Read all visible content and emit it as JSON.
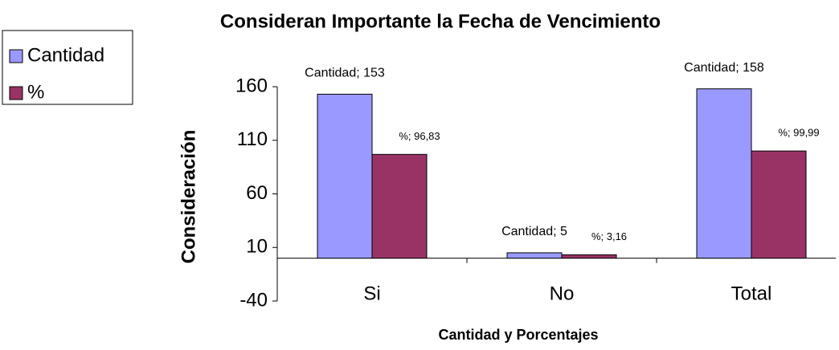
{
  "chart_data": {
    "type": "bar",
    "title": "Consideran Importante la Fecha de Vencimiento",
    "x_label": "Cantidad y Porcentajes",
    "y_label": "Consideración",
    "categories": [
      "Si",
      "No",
      "Total"
    ],
    "series": [
      {
        "name": "Cantidad",
        "color": "#9999ff",
        "values": [
          153,
          5,
          158
        ],
        "value_labels": [
          "Cantidad; 153",
          "Cantidad; 5",
          "Cantidad; 158"
        ]
      },
      {
        "name": "%",
        "color": "#993366",
        "values": [
          96.83,
          3.16,
          99.99
        ],
        "value_labels": [
          "%; 96,83",
          "%; 3,16",
          "%; 99,99"
        ]
      }
    ],
    "ylim": [
      -40,
      160
    ],
    "yticks": [
      -40,
      10,
      60,
      110,
      160
    ],
    "grid": false,
    "legend": "top-left"
  }
}
